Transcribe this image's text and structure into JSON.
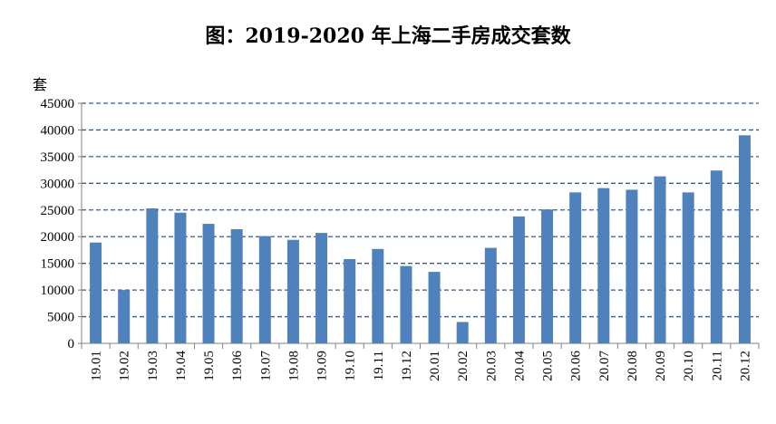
{
  "title": "图：2019-2020 年上海二手房成交套数",
  "colors": {
    "bar": "#4f81bd",
    "grid": "#3a5a8c",
    "axis": "#808080"
  },
  "chart_data": {
    "type": "bar",
    "title": "图：2019-2020 年上海二手房成交套数",
    "ylabel": "套",
    "xlabel": "",
    "ylim": [
      0,
      45000
    ],
    "yticks": [
      0,
      5000,
      10000,
      15000,
      20000,
      25000,
      30000,
      35000,
      40000,
      45000
    ],
    "grid": true,
    "legend": "none",
    "categories": [
      "19.01",
      "19.02",
      "19.03",
      "19.04",
      "19.05",
      "19.06",
      "19.07",
      "19.08",
      "19.09",
      "19.10",
      "19.11",
      "19.12",
      "20.01",
      "20.02",
      "20.03",
      "20.04",
      "20.05",
      "20.06",
      "20.07",
      "20.08",
      "20.09",
      "20.10",
      "20.11",
      "20.12"
    ],
    "values": [
      18900,
      10000,
      25300,
      24500,
      22400,
      21400,
      20100,
      19400,
      20700,
      15800,
      17700,
      14500,
      13400,
      4000,
      17900,
      23800,
      25100,
      28300,
      29100,
      28800,
      31300,
      28300,
      32400,
      39000
    ]
  }
}
